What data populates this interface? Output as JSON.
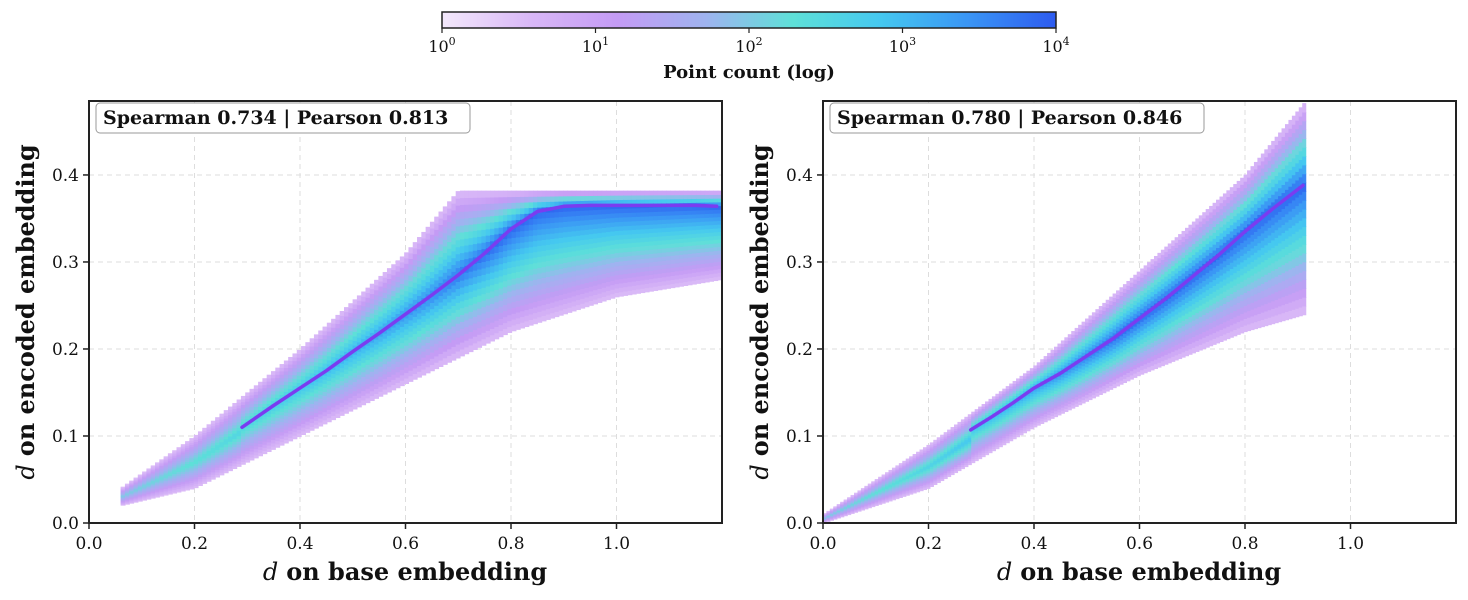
{
  "colors": {
    "colormap": [
      "#f3e8fb",
      "#d9b8f7",
      "#c49bf5",
      "#9fb3f0",
      "#5ee0d8",
      "#45c8f0",
      "#3a95f5",
      "#2d5bf0"
    ],
    "trend_line": "#7a3cf0",
    "axes_frame": "#222222",
    "grid": "#dddddd"
  },
  "colorbar": {
    "label": "Point count (log)",
    "scale": "log",
    "ticks": [
      {
        "base": "10",
        "exp": "0"
      },
      {
        "base": "10",
        "exp": "1"
      },
      {
        "base": "10",
        "exp": "2"
      },
      {
        "base": "10",
        "exp": "3"
      },
      {
        "base": "10",
        "exp": "4"
      }
    ]
  },
  "chart_data": [
    {
      "type": "heatmap",
      "subtype": "hexbin-with-trend-line",
      "xlabel": "on base embedding",
      "xlabel_var": "d",
      "ylabel": "on encoded embedding",
      "ylabel_var": "d",
      "xlim": [
        0.0,
        1.2
      ],
      "ylim": [
        0.0,
        0.485
      ],
      "x_ticks": [
        "0.0",
        "0.2",
        "0.4",
        "0.6",
        "0.8",
        "1.0"
      ],
      "y_ticks": [
        "0.0",
        "0.1",
        "0.2",
        "0.3",
        "0.4"
      ],
      "grid": true,
      "annotation": "Spearman 0.734 | Pearson 0.813",
      "trend_line": {
        "x": [
          0.29,
          0.35,
          0.4,
          0.45,
          0.5,
          0.55,
          0.6,
          0.65,
          0.7,
          0.75,
          0.8,
          0.85,
          0.9,
          0.95,
          1.0,
          1.05,
          1.1,
          1.15,
          1.19
        ],
        "y": [
          0.11,
          0.135,
          0.155,
          0.175,
          0.197,
          0.218,
          0.24,
          0.262,
          0.285,
          0.31,
          0.338,
          0.358,
          0.364,
          0.365,
          0.365,
          0.365,
          0.365,
          0.365,
          0.364
        ]
      },
      "density": {
        "x_min": 0.06,
        "x_max": 1.2,
        "y_cap": 0.382,
        "lower": [
          [
            0.06,
            0.02
          ],
          [
            0.2,
            0.04
          ],
          [
            0.4,
            0.1
          ],
          [
            0.6,
            0.16
          ],
          [
            0.8,
            0.22
          ],
          [
            1.0,
            0.26
          ],
          [
            1.2,
            0.28
          ]
        ],
        "upper": [
          [
            0.06,
            0.04
          ],
          [
            0.2,
            0.1
          ],
          [
            0.4,
            0.2
          ],
          [
            0.6,
            0.31
          ],
          [
            0.7,
            0.382
          ],
          [
            1.2,
            0.382
          ]
        ]
      }
    },
    {
      "type": "heatmap",
      "subtype": "hexbin-with-trend-line",
      "xlabel": "on base embedding",
      "xlabel_var": "d",
      "ylabel": "on encoded embedding",
      "ylabel_var": "d",
      "xlim": [
        0.0,
        1.2
      ],
      "ylim": [
        0.0,
        0.485
      ],
      "x_ticks": [
        "0.0",
        "0.2",
        "0.4",
        "0.6",
        "0.8",
        "1.0"
      ],
      "y_ticks": [
        "0.0",
        "0.1",
        "0.2",
        "0.3",
        "0.4"
      ],
      "grid": true,
      "annotation": "Spearman 0.780 | Pearson 0.846",
      "trend_line": {
        "x": [
          0.28,
          0.32,
          0.36,
          0.4,
          0.45,
          0.5,
          0.55,
          0.6,
          0.65,
          0.7,
          0.75,
          0.8,
          0.85,
          0.91
        ],
        "y": [
          0.107,
          0.122,
          0.138,
          0.155,
          0.172,
          0.192,
          0.212,
          0.235,
          0.258,
          0.283,
          0.308,
          0.335,
          0.36,
          0.388
        ]
      },
      "density": {
        "x_min": 0.0,
        "x_max": 0.915,
        "y_cap": 0.485,
        "lower": [
          [
            0.0,
            0.0
          ],
          [
            0.2,
            0.04
          ],
          [
            0.4,
            0.11
          ],
          [
            0.6,
            0.17
          ],
          [
            0.8,
            0.22
          ],
          [
            0.915,
            0.24
          ]
        ],
        "upper": [
          [
            0.0,
            0.01
          ],
          [
            0.2,
            0.09
          ],
          [
            0.4,
            0.18
          ],
          [
            0.6,
            0.29
          ],
          [
            0.8,
            0.4
          ],
          [
            0.915,
            0.485
          ]
        ]
      }
    }
  ]
}
